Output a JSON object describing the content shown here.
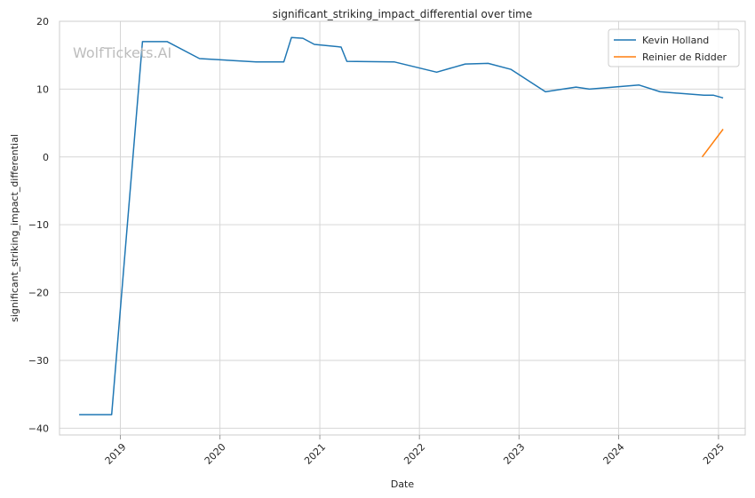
{
  "chart_data": {
    "type": "line",
    "title": "significant_striking_impact_differential over time",
    "xlabel": "Date",
    "ylabel": "significant_striking_impact_differential",
    "watermark": "WolfTickets.AI",
    "grid": true,
    "legend_position": "top-right",
    "xlim": [
      "2018-05-23",
      "2025-04-09"
    ],
    "ylim": [
      -41,
      20
    ],
    "x_ticks": [
      "2019-01-01",
      "2020-01-01",
      "2021-01-01",
      "2022-01-01",
      "2023-01-01",
      "2024-01-01",
      "2025-01-01"
    ],
    "x_tick_labels": [
      "2019",
      "2020",
      "2021",
      "2022",
      "2023",
      "2024",
      "2025"
    ],
    "y_ticks": [
      20,
      10,
      0,
      -10,
      -20,
      -30,
      -40
    ],
    "y_tick_labels": [
      "20",
      "10",
      "0",
      "−10",
      "−20",
      "−30",
      "−40"
    ],
    "series": [
      {
        "name": "Kevin Holland",
        "color": "#1f77b4",
        "points": [
          {
            "x": "2018-08-03",
            "y": -38
          },
          {
            "x": "2018-11-30",
            "y": -38
          },
          {
            "x": "2019-03-23",
            "y": 17
          },
          {
            "x": "2019-06-22",
            "y": 17
          },
          {
            "x": "2019-10-18",
            "y": 14.5
          },
          {
            "x": "2020-05-13",
            "y": 14
          },
          {
            "x": "2020-08-22",
            "y": 14
          },
          {
            "x": "2020-09-19",
            "y": 17.6
          },
          {
            "x": "2020-10-31",
            "y": 17.5
          },
          {
            "x": "2020-12-12",
            "y": 16.6
          },
          {
            "x": "2021-03-20",
            "y": 16.2
          },
          {
            "x": "2021-04-10",
            "y": 14.1
          },
          {
            "x": "2021-10-02",
            "y": 14
          },
          {
            "x": "2022-03-05",
            "y": 12.5
          },
          {
            "x": "2022-06-18",
            "y": 13.7
          },
          {
            "x": "2022-09-10",
            "y": 13.8
          },
          {
            "x": "2022-12-03",
            "y": 12.9
          },
          {
            "x": "2023-04-08",
            "y": 9.6
          },
          {
            "x": "2023-07-29",
            "y": 10.3
          },
          {
            "x": "2023-09-16",
            "y": 10
          },
          {
            "x": "2024-03-16",
            "y": 10.6
          },
          {
            "x": "2024-06-01",
            "y": 9.6
          },
          {
            "x": "2024-11-09",
            "y": 9.1
          },
          {
            "x": "2024-12-14",
            "y": 9.1
          },
          {
            "x": "2025-01-18",
            "y": 8.7
          }
        ]
      },
      {
        "name": "Reinier de Ridder",
        "color": "#ff7f0e",
        "points": [
          {
            "x": "2024-11-02",
            "y": 0
          },
          {
            "x": "2025-01-18",
            "y": 4.1
          }
        ]
      }
    ]
  }
}
